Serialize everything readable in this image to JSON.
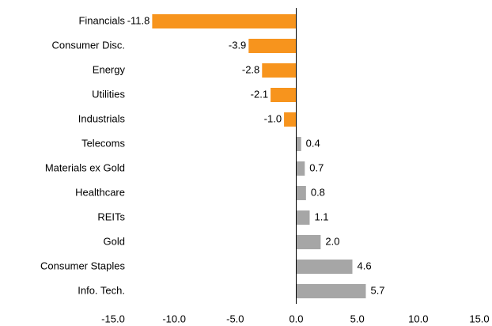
{
  "chart_data": {
    "type": "hbar",
    "categories": [
      "Financials",
      "Consumer Disc.",
      "Energy",
      "Utilities",
      "Industrials",
      "Telecoms",
      "Materials ex Gold",
      "Healthcare",
      "REITs",
      "Gold",
      "Consumer Staples",
      "Info. Tech."
    ],
    "values": [
      -11.8,
      -3.9,
      -2.8,
      -2.1,
      -1.0,
      0.4,
      0.7,
      0.8,
      1.1,
      2.0,
      4.6,
      5.7
    ],
    "value_labels": [
      "-11.8",
      "-3.9",
      "-2.8",
      "-2.1",
      "-1.0",
      "0.4",
      "0.7",
      "0.8",
      "1.1",
      "2.0",
      "4.6",
      "5.7"
    ],
    "colors": [
      "#f7941d",
      "#f7941d",
      "#f7941d",
      "#f7941d",
      "#f7941d",
      "#a6a6a6",
      "#a6a6a6",
      "#a6a6a6",
      "#a6a6a6",
      "#a6a6a6",
      "#a6a6a6",
      "#a6a6a6"
    ],
    "xlim": [
      -15,
      15
    ],
    "xticks": [
      {
        "value": -15,
        "label": "-15.0"
      },
      {
        "value": -10,
        "label": "-10.0"
      },
      {
        "value": -5,
        "label": "-5.0"
      },
      {
        "value": 0,
        "label": "0.0"
      },
      {
        "value": 5,
        "label": "5.0"
      },
      {
        "value": 10,
        "label": "10.0"
      },
      {
        "value": 15,
        "label": "15.0"
      }
    ],
    "grid": false
  }
}
